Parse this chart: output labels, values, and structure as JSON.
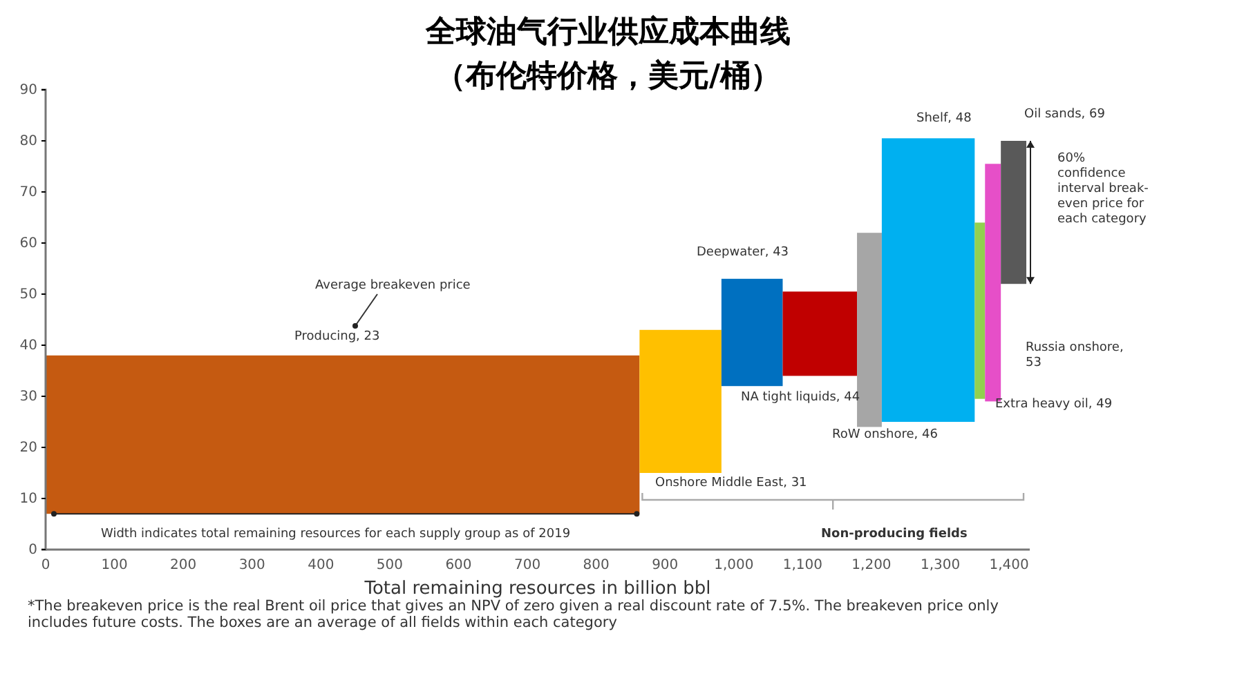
{
  "chart_data": {
    "type": "histogram",
    "title": "全球油气行业供应成本曲线",
    "subtitle": "（布伦特价格，美元/桶）",
    "xlabel": "Total remaining resources in billion bbl",
    "categories": [
      "Producing, 23",
      "Onshore Middle East, 31",
      "Deepwater, 43",
      "NA tight liquids, 44",
      "RoW onshore, 46",
      "Shelf, 48",
      "Extra heavy oil, 49",
      "Russia onshore,\n53",
      "Oil sands, 69"
    ],
    "bins": [
      0,
      863,
      982,
      1071,
      1179,
      1215,
      1350,
      1365,
      1388,
      1425
    ],
    "values": [
      31,
      28,
      21,
      16.5,
      38,
      55.5,
      34.5,
      46.5,
      28
    ],
    "base": [
      7,
      15,
      32,
      34,
      24,
      25,
      29.5,
      29,
      52
    ],
    "colors": [
      "#c55a11",
      "#ffc000",
      "#0070c0",
      "#c00000",
      "#a6a6a6",
      "#00b0f0",
      "#92d050",
      "#e64fc8",
      "#595959"
    ],
    "xlim": [
      0,
      1430
    ],
    "ylim": [
      0,
      90
    ],
    "xticks": [
      0,
      100,
      200,
      300,
      400,
      500,
      600,
      700,
      800,
      900,
      {
        "value": 1000,
        "label": "1,000"
      },
      {
        "value": 1100,
        "label": "1,100"
      },
      {
        "value": 1200,
        "label": "1,200"
      },
      {
        "value": 1300,
        "label": "1,300"
      },
      {
        "value": 1400,
        "label": "1,400"
      }
    ],
    "yticks": [
      0,
      10,
      20,
      30,
      40,
      50,
      60,
      70,
      80,
      90
    ],
    "grid": false,
    "annotations": [
      "Average breakeven price",
      "60%\nconfidence\ninterval break-\neven price for\neach category",
      "Width indicates total remaining resources for each supply group as of 2019",
      "Non-producing fields",
      "*The breakeven price is the real Brent oil price that gives an NPV of zero given a real discount rate of 7.5%. The breakeven price only includes future costs. The boxes are an average of all fields within each category"
    ]
  }
}
